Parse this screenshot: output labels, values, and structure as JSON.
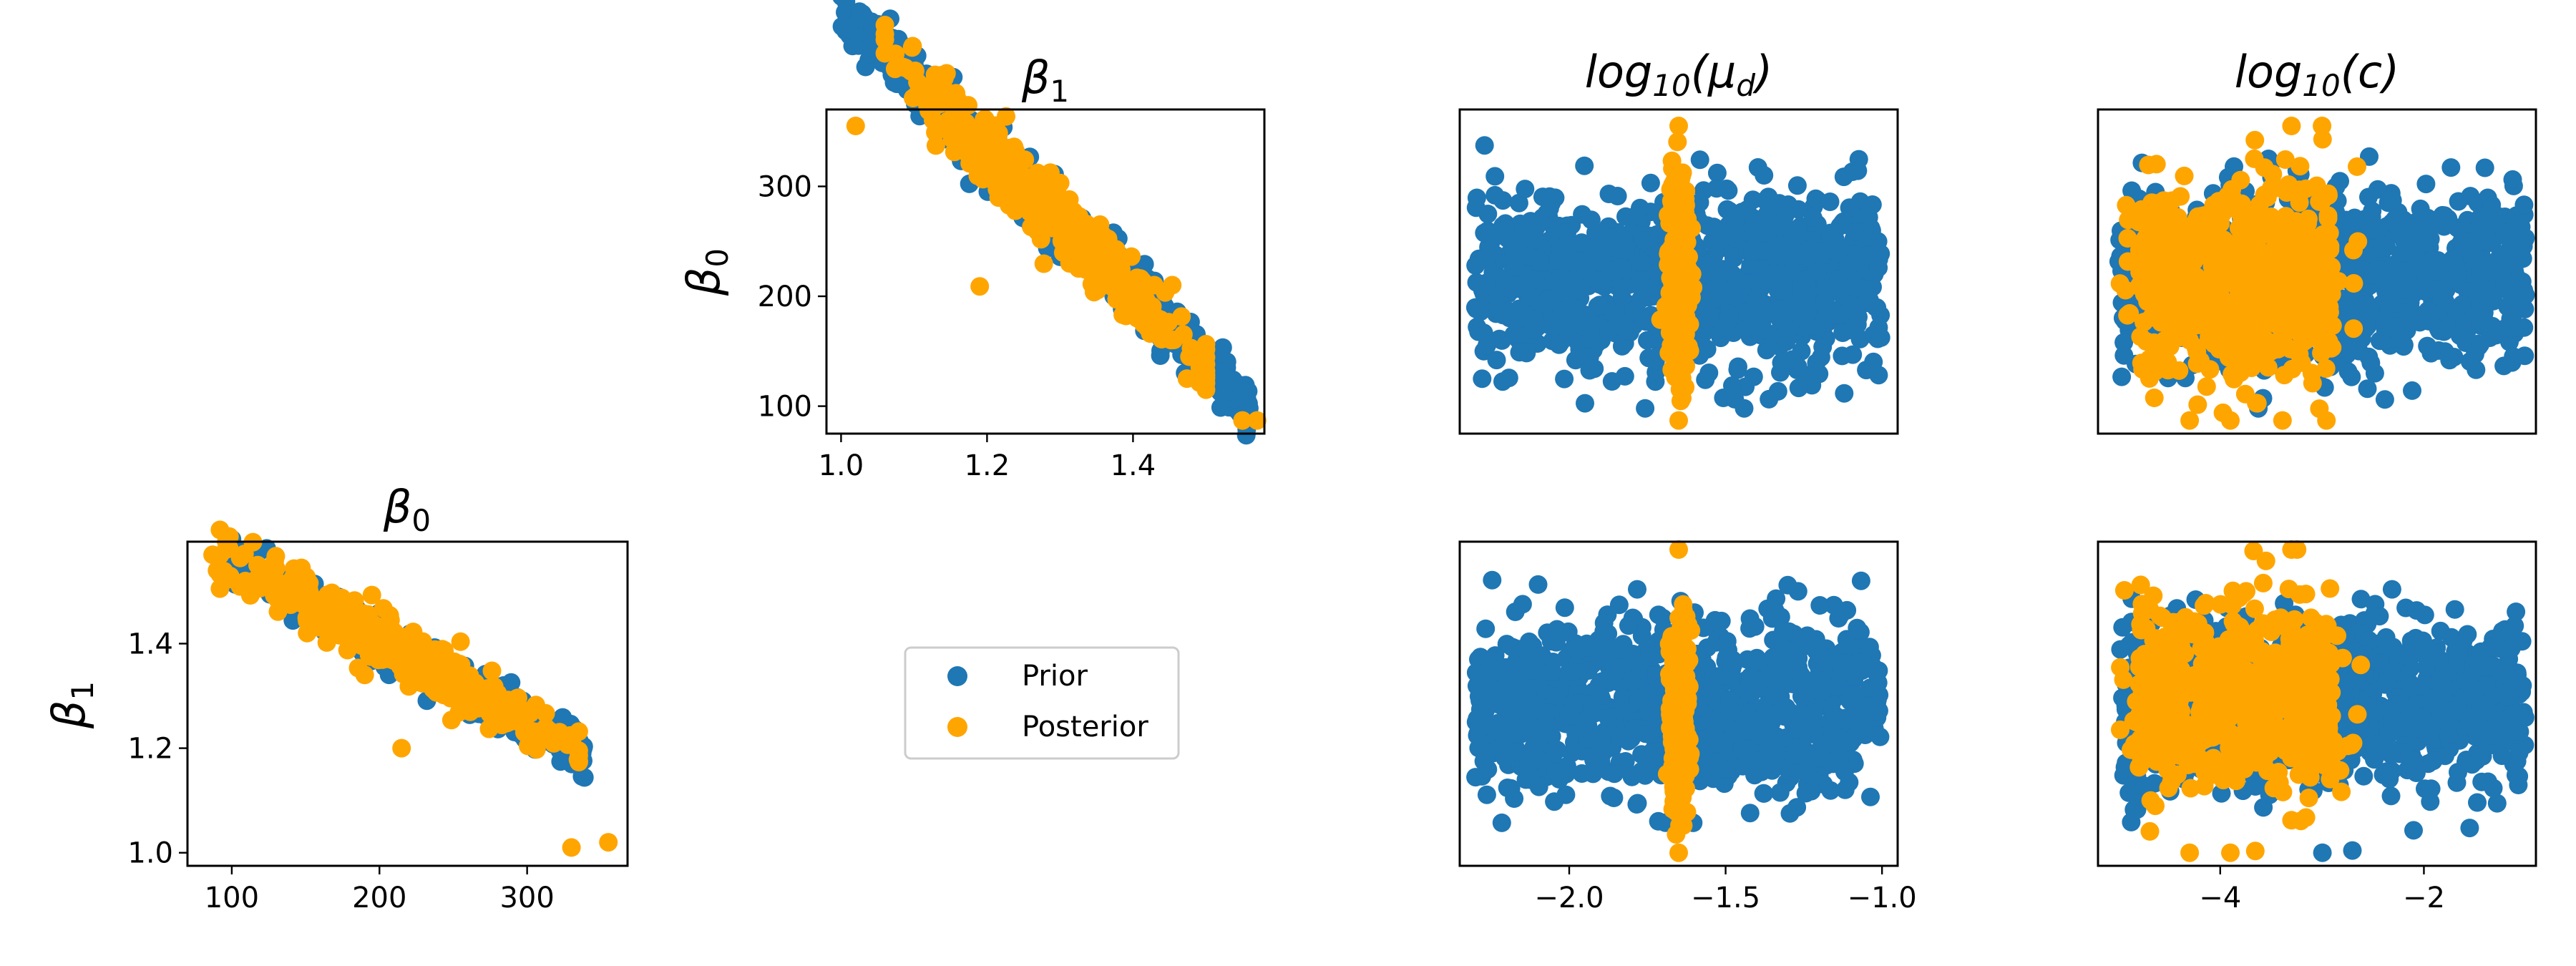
{
  "colors": {
    "prior": "#1f77b4",
    "posterior": "#ffa500"
  },
  "legend": {
    "prior": "Prior",
    "posterior": "Posterior"
  },
  "chart_data": [
    {
      "id": "beta1-vs-beta0",
      "type": "scatter",
      "title": "β1",
      "xlabel": "",
      "ylabel": "β0",
      "xlim": [
        0.98,
        1.58
      ],
      "ylim": [
        75,
        370
      ],
      "xticks": [
        1.0,
        1.2,
        1.4
      ],
      "xtick_labels": [
        "1.0",
        "1.2",
        "1.4"
      ],
      "yticks": [
        100,
        200,
        300
      ],
      "ytick_labels": [
        "100",
        "200",
        "300"
      ],
      "series": [
        {
          "name": "Prior",
          "x_range": [
            1.0,
            1.56
          ],
          "relation": "y = 1100 - 640x",
          "spread": 14
        },
        {
          "name": "Posterior",
          "x_range": [
            1.02,
            1.57
          ],
          "relation": "y = 1100 - 640x",
          "spread": 16,
          "extremes": [
            [
              1.02,
              355
            ],
            [
              1.57,
              87
            ],
            [
              1.55,
              87
            ],
            [
              1.19,
              209
            ],
            [
              1.38,
              225
            ]
          ]
        }
      ]
    },
    {
      "id": "log10mud-vs-beta0",
      "type": "scatter",
      "title": "log10(μd)",
      "xlabel": "",
      "ylabel": "",
      "xlim": [
        -2.35,
        -0.95
      ],
      "ylim": [
        75,
        370
      ],
      "xticks": [],
      "yticks": [],
      "series": [
        {
          "name": "Prior",
          "x_range": [
            -2.3,
            -1.0
          ],
          "y_center": 215,
          "y_sd": 40,
          "y_range": [
            98,
            340
          ]
        },
        {
          "name": "Posterior",
          "x_center": -1.65,
          "x_sd": 0.015,
          "y_range": [
            87,
            355
          ]
        }
      ]
    },
    {
      "id": "log10c-vs-beta0",
      "type": "scatter",
      "title": "log10(c)",
      "xlabel": "",
      "ylabel": "",
      "xlim": [
        -5.2,
        -0.9
      ],
      "ylim": [
        75,
        370
      ],
      "xticks": [],
      "yticks": [],
      "series": [
        {
          "name": "Prior",
          "x_range": [
            -5.0,
            -1.0
          ],
          "y_center": 215,
          "y_sd": 40,
          "y_range": [
            98,
            340
          ]
        },
        {
          "name": "Posterior",
          "x_range": [
            -5.0,
            -2.6
          ],
          "x_dense_range": [
            -4.8,
            -2.9
          ],
          "y_center": 215,
          "y_sd": 45,
          "y_range": [
            87,
            355
          ]
        }
      ]
    },
    {
      "id": "beta0-vs-beta1",
      "type": "scatter",
      "title": "β0",
      "xlabel": "",
      "ylabel": "β1",
      "xlim": [
        70,
        368
      ],
      "ylim": [
        0.975,
        1.595
      ],
      "xticks": [
        100,
        200,
        300
      ],
      "xtick_labels": [
        "100",
        "200",
        "300"
      ],
      "yticks": [
        1.0,
        1.2,
        1.4
      ],
      "ytick_labels": [
        "1.0",
        "1.2",
        "1.4"
      ],
      "series": [
        {
          "name": "Prior",
          "x_range": [
            98,
            340
          ],
          "relation": "y = 1.719 - 0.0015625x",
          "spread": 0.02
        },
        {
          "name": "Posterior",
          "x_range": [
            87,
            355
          ],
          "relation": "y = 1.719 - 0.0015625x",
          "spread": 0.025
        }
      ]
    },
    {
      "id": "log10mud-vs-beta1",
      "type": "scatter",
      "title": "",
      "xlabel": "",
      "ylabel": "",
      "xlim": [
        -2.35,
        -0.95
      ],
      "ylim": [
        0.975,
        1.595
      ],
      "xticks": [
        -2.0,
        -1.5,
        -1.0
      ],
      "xtick_labels": [
        "−2.0",
        "−1.5",
        "−1.0"
      ],
      "yticks": [],
      "series": [
        {
          "name": "Prior",
          "x_range": [
            -2.3,
            -1.0
          ],
          "y_center": 1.28,
          "y_sd": 0.08,
          "y_range": [
            1.0,
            1.56
          ]
        },
        {
          "name": "Posterior",
          "x_center": -1.65,
          "x_sd": 0.015,
          "y_range": [
            1.0,
            1.58
          ]
        }
      ]
    },
    {
      "id": "log10c-vs-beta1",
      "type": "scatter",
      "title": "",
      "xlabel": "",
      "ylabel": "",
      "xlim": [
        -5.2,
        -0.9
      ],
      "ylim": [
        0.975,
        1.595
      ],
      "xticks": [
        -4,
        -2
      ],
      "xtick_labels": [
        "−4",
        "−2"
      ],
      "yticks": [],
      "series": [
        {
          "name": "Prior",
          "x_range": [
            -5.0,
            -1.0
          ],
          "y_center": 1.28,
          "y_sd": 0.08,
          "y_range": [
            1.0,
            1.56
          ]
        },
        {
          "name": "Posterior",
          "x_range": [
            -5.0,
            -2.6
          ],
          "x_dense_range": [
            -4.8,
            -2.9
          ],
          "y_center": 1.29,
          "y_sd": 0.09,
          "y_range": [
            1.0,
            1.58
          ]
        }
      ]
    }
  ]
}
